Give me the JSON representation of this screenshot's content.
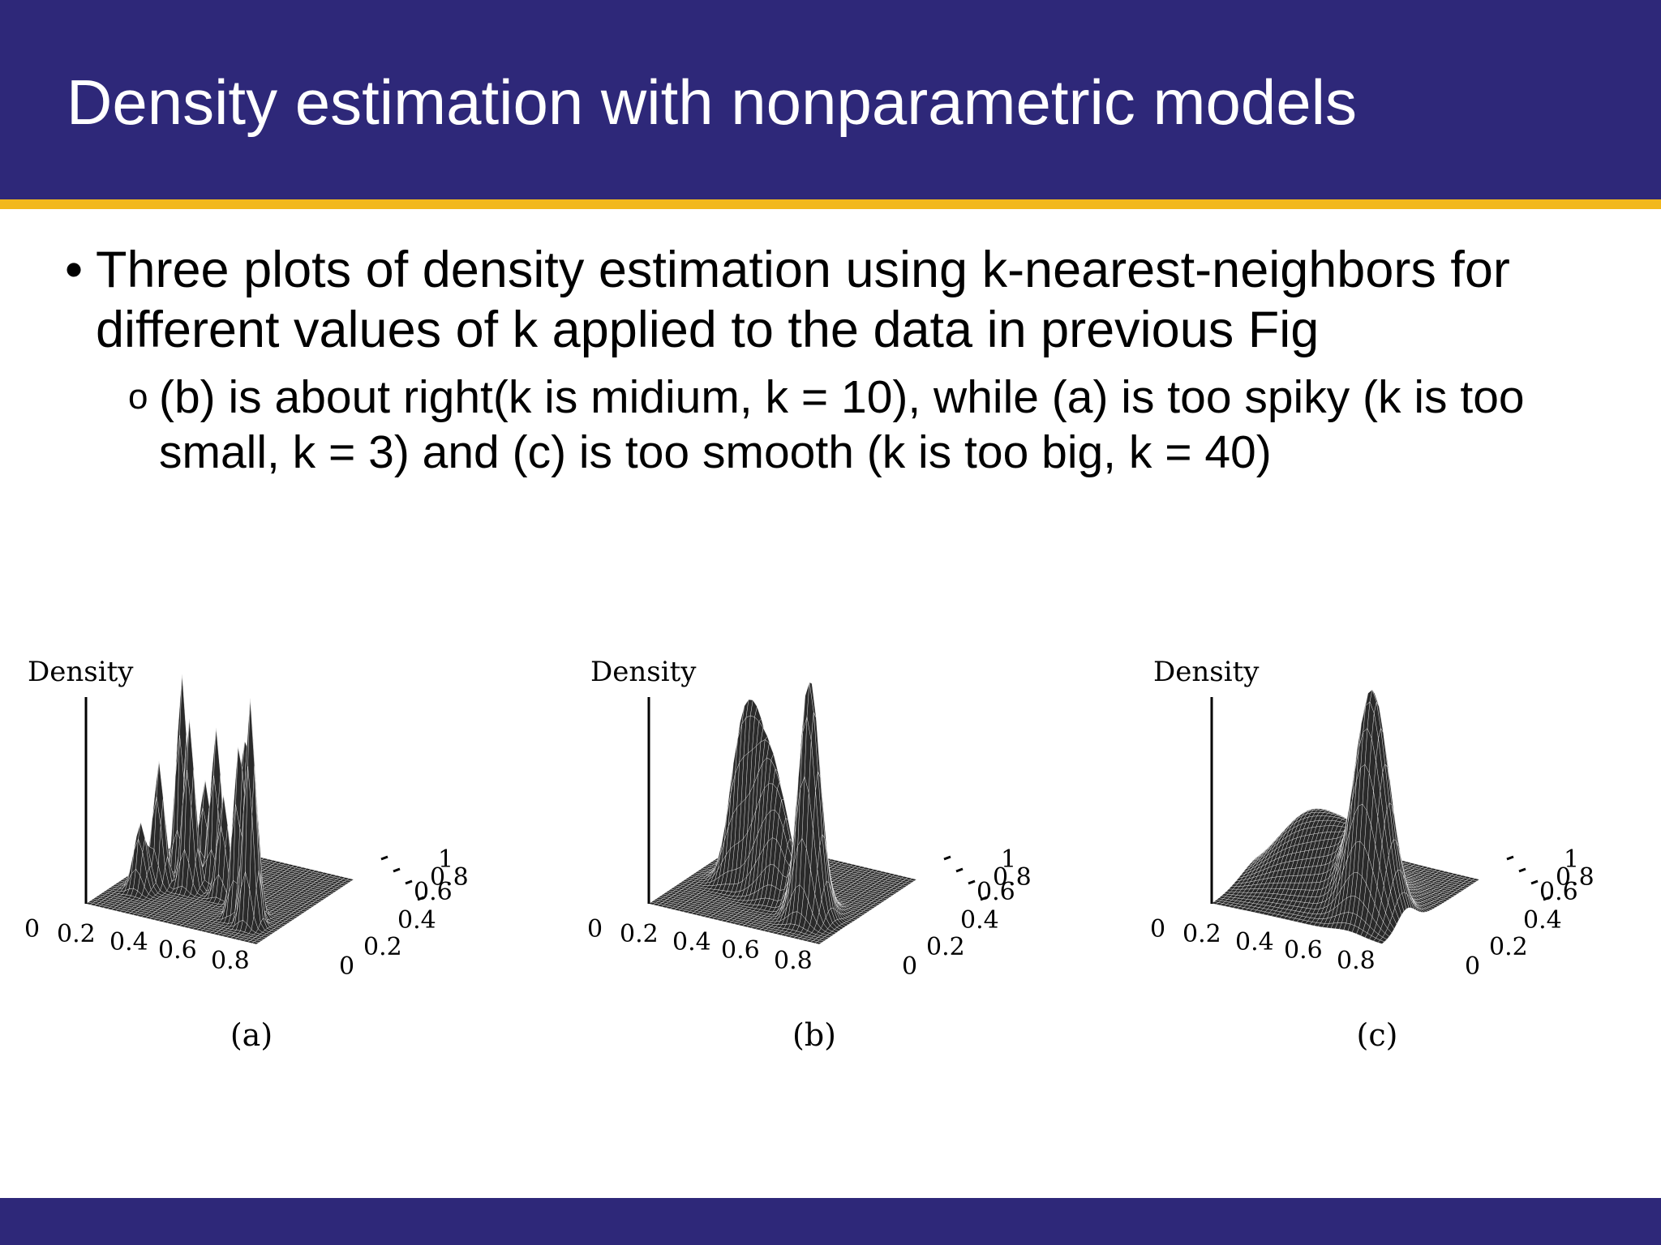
{
  "slide": {
    "title": "Density estimation with nonparametric models",
    "bullets": [
      {
        "text": "Three plots of density estimation using k-nearest-neighbors for different values of k  applied to the data in previous Fig",
        "marker": "•"
      }
    ],
    "sub_bullets": [
      {
        "text": "(b) is about right(k is midium, k = 10), while (a) is too spiky (k is too small, k = 3) and (c) is too smooth (k is too big, k = 40)",
        "marker": "o"
      }
    ]
  },
  "figures": [
    {
      "axis_label": "Density",
      "caption": "(a)",
      "x_ticks": [
        "0",
        "0.2",
        "0.4",
        "0.6",
        "0.8"
      ],
      "y_ticks": [
        "0",
        "0.2",
        "0.4",
        "0.6",
        "0.8",
        "1"
      ],
      "k": 3
    },
    {
      "axis_label": "Density",
      "caption": "(b)",
      "x_ticks": [
        "0",
        "0.2",
        "0.4",
        "0.6",
        "0.8"
      ],
      "y_ticks": [
        "0",
        "0.2",
        "0.4",
        "0.6",
        "0.8",
        "1"
      ],
      "k": 10
    },
    {
      "axis_label": "Density",
      "caption": "(c)",
      "x_ticks": [
        "0",
        "0.2",
        "0.4",
        "0.6",
        "0.8"
      ],
      "y_ticks": [
        "0",
        "0.2",
        "0.4",
        "0.6",
        "0.8",
        "1"
      ],
      "k": 40
    }
  ],
  "colors": {
    "header": "#2e2879",
    "stripe": "#f2b81c",
    "footer": "#2e2879",
    "text": "#000000"
  }
}
